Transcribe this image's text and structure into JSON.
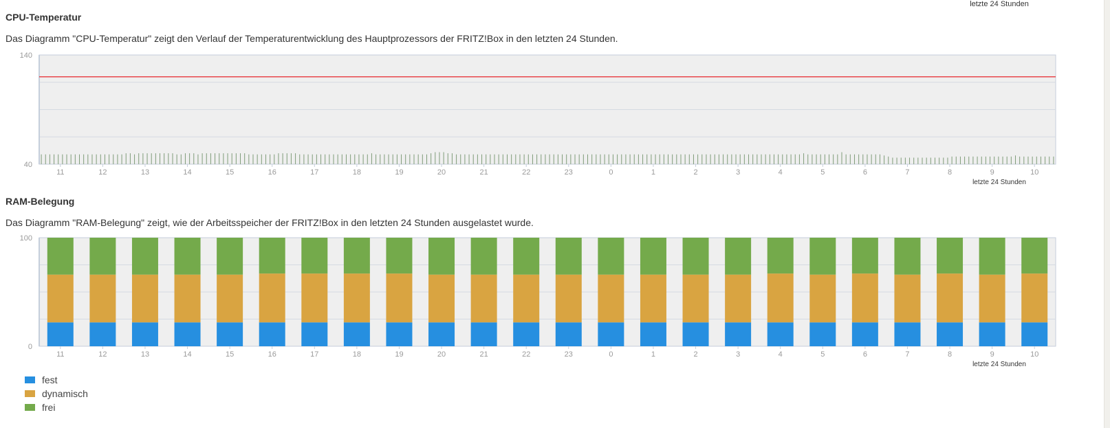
{
  "top_cut_label": "letzte 24 Stunden",
  "cpu": {
    "title": "CPU-Temperatur",
    "description": "Das Diagramm \"CPU-Temperatur\" zeigt den Verlauf der Temperaturentwicklung des Hauptprozessors der FRITZ!Box in den letzten 24 Stunden.",
    "chart_data": {
      "type": "bar",
      "xlabel": "letzte 24 Stunden",
      "ylim": [
        40,
        140
      ],
      "yticks": [
        "140",
        "40"
      ],
      "gridlines": [
        65,
        90,
        115
      ],
      "threshold": 120,
      "x_tick_labels": [
        "11",
        "12",
        "13",
        "14",
        "15",
        "16",
        "17",
        "18",
        "19",
        "20",
        "21",
        "22",
        "23",
        "0",
        "1",
        "2",
        "3",
        "4",
        "5",
        "6",
        "7",
        "8",
        "9",
        "10"
      ],
      "x_range_hours": [
        10.5,
        34.5
      ],
      "values": [
        49,
        49,
        49,
        49,
        49,
        49,
        49,
        49,
        49,
        49,
        49,
        49,
        49,
        49,
        49,
        49,
        49,
        49,
        49,
        49,
        50,
        50,
        49,
        50,
        50,
        50,
        50,
        50,
        50,
        50,
        50,
        50,
        49,
        49,
        50,
        50,
        50,
        49,
        50,
        50,
        50,
        50,
        50,
        50,
        50,
        50,
        50,
        50,
        50,
        49,
        49,
        49,
        49,
        49,
        49,
        49,
        50,
        50,
        50,
        50,
        50,
        49,
        49,
        49,
        49,
        49,
        49,
        49,
        49,
        49,
        49,
        49,
        49,
        49,
        49,
        49,
        49,
        49,
        50,
        49,
        49,
        49,
        49,
        49,
        49,
        49,
        49,
        49,
        49,
        49,
        49,
        49,
        50,
        51,
        51,
        51,
        50,
        50,
        49,
        49,
        49,
        49,
        49,
        49,
        49,
        49,
        49,
        49,
        49,
        49,
        49,
        49,
        49,
        49,
        49,
        49,
        49,
        49,
        49,
        49,
        49,
        49,
        49,
        49,
        49,
        49,
        49,
        49,
        49,
        49,
        49,
        49,
        49,
        49,
        49,
        49,
        49,
        49,
        49,
        49,
        49,
        49,
        49,
        49,
        49,
        49,
        49,
        49,
        49,
        49,
        49,
        49,
        49,
        49,
        49,
        49,
        49,
        49,
        49,
        49,
        49,
        49,
        49,
        49,
        49,
        49,
        49,
        49,
        49,
        49,
        49,
        49,
        49,
        49,
        49,
        49,
        49,
        49,
        49,
        49,
        50,
        49,
        49,
        49,
        49,
        49,
        49,
        49,
        49,
        51,
        49,
        49,
        49,
        49,
        49,
        49,
        49,
        49,
        49,
        48,
        47,
        46,
        46,
        46,
        46,
        46,
        46,
        46,
        46,
        46,
        46,
        46,
        46,
        46,
        46,
        47,
        47,
        47,
        47,
        47,
        47,
        47,
        47,
        47,
        47,
        47,
        47,
        47,
        47,
        47,
        48,
        47,
        47,
        47,
        47,
        47,
        47,
        47,
        47,
        47
      ]
    }
  },
  "ram": {
    "title": "RAM-Belegung",
    "description": "Das Diagramm \"RAM-Belegung\" zeigt, wie der Arbeitsspeicher der FRITZ!Box in den letzten 24 Stunden ausgelastet wurde.",
    "chart_data": {
      "type": "bar",
      "stacked": true,
      "xlabel": "letzte 24 Stunden",
      "ylim": [
        0,
        100
      ],
      "yticks": [
        "100",
        "0"
      ],
      "gridlines": [
        25,
        50,
        75
      ],
      "categories": [
        "11",
        "12",
        "13",
        "14",
        "15",
        "16",
        "17",
        "18",
        "19",
        "20",
        "21",
        "22",
        "23",
        "0",
        "1",
        "2",
        "3",
        "4",
        "5",
        "6",
        "7",
        "8",
        "9",
        "10"
      ],
      "series": [
        {
          "name": "fest",
          "color": "#268fe0",
          "values": [
            22,
            22,
            22,
            22,
            22,
            22,
            22,
            22,
            22,
            22,
            22,
            22,
            22,
            22,
            22,
            22,
            22,
            22,
            22,
            22,
            22,
            22,
            22,
            22
          ]
        },
        {
          "name": "dynamisch",
          "color": "#d9a441",
          "values": [
            44,
            44,
            44,
            44,
            44,
            45,
            45,
            45,
            45,
            44,
            44,
            44,
            44,
            44,
            44,
            44,
            44,
            45,
            44,
            45,
            44,
            45,
            44,
            45
          ]
        },
        {
          "name": "frei",
          "color": "#74aa4b",
          "values": [
            34,
            34,
            34,
            34,
            34,
            33,
            33,
            33,
            33,
            34,
            34,
            34,
            34,
            34,
            34,
            34,
            34,
            33,
            34,
            33,
            34,
            33,
            34,
            33
          ]
        }
      ],
      "legend_position": "bottom-left"
    }
  },
  "colors": {
    "plot_bg": "#efefef",
    "grid": "#d5dae2",
    "axis": "#c5cedb",
    "threshold": "#e8464a",
    "cpu_bar": "#7f9c79",
    "tick_text": "#9a9a9a"
  }
}
